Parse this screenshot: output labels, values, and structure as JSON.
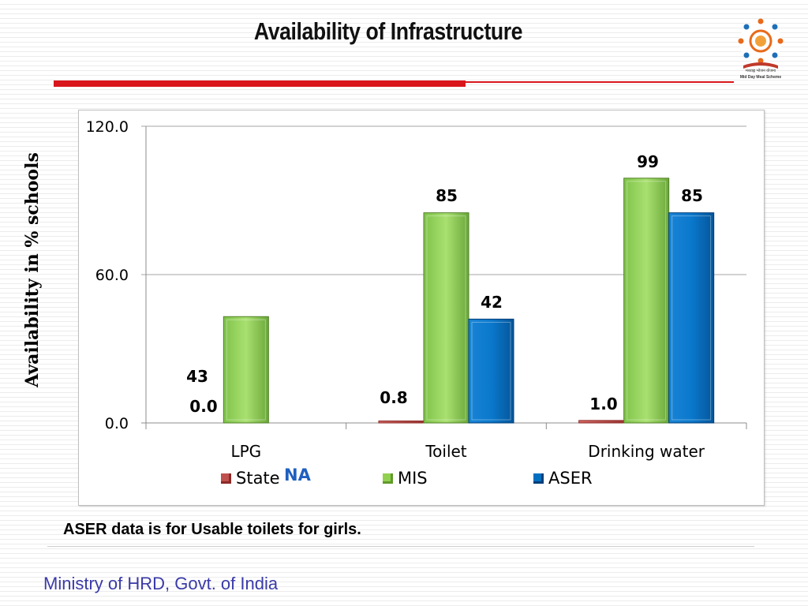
{
  "slide": {
    "title": "Availability of Infrastructure",
    "note": "ASER data is for Usable toilets for girls.",
    "footer": "Ministry of HRD, Govt. of India",
    "logo_caption_hindi": "मध्याह्न भोजन योजना",
    "logo_caption": "Mid Day Meal Scheme",
    "na_label": "NA"
  },
  "colors": {
    "accent_red": "#d9161c",
    "state": "#c0504d",
    "mis": "#92d050",
    "aser": "#0070c0",
    "footer_text": "#3a3aa8",
    "na_text": "#1f5fbf"
  },
  "chart_data": {
    "type": "bar",
    "title": "",
    "xlabel": "",
    "ylabel": "Availability in % schools",
    "ylim": [
      0,
      120
    ],
    "yticks": [
      "0.0",
      "60.0",
      "120.0"
    ],
    "grid": true,
    "legend_position": "bottom",
    "categories": [
      "LPG",
      "Toilet",
      "Drinking water"
    ],
    "series": [
      {
        "name": "State",
        "values": [
          0.0,
          0.8,
          1.0
        ],
        "labels": [
          "0.0",
          "0.8",
          "1.0"
        ]
      },
      {
        "name": "MIS",
        "values": [
          43,
          85,
          99
        ],
        "labels": [
          "43",
          "85",
          "99"
        ]
      },
      {
        "name": "ASER",
        "values": [
          null,
          42,
          85
        ],
        "labels": [
          "",
          "42",
          "85"
        ]
      }
    ]
  }
}
